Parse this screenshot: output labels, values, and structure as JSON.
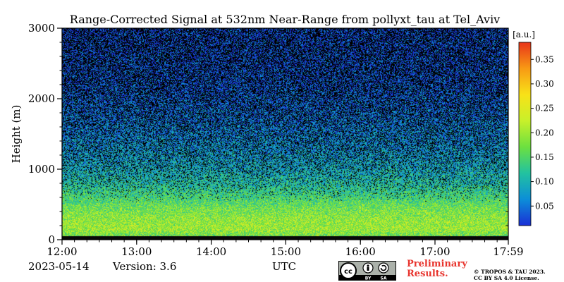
{
  "chart_data": {
    "type": "heatmap",
    "title": "Range-Corrected Signal at 532nm Near-Range from pollyxt_tau at Tel_Aviv",
    "ylabel": "Height (m)",
    "xlabel": "UTC",
    "x_tick_labels": [
      "12:00",
      "13:00",
      "14:00",
      "15:00",
      "16:00",
      "17:00",
      "17:59"
    ],
    "x_tick_hours": [
      12.0,
      13.0,
      14.0,
      15.0,
      16.0,
      17.0,
      17.983
    ],
    "xlim_hours": [
      12.0,
      17.983
    ],
    "y_tick_labels": [
      "0",
      "1000",
      "2000",
      "3000"
    ],
    "y_ticks": [
      0,
      1000,
      2000,
      3000
    ],
    "ylim": [
      0,
      3000
    ],
    "colorbar": {
      "unit_label": "[a.u.]",
      "tick_labels": [
        "0.05",
        "0.10",
        "0.15",
        "0.20",
        "0.25",
        "0.30",
        "0.35"
      ],
      "ticks": [
        0.05,
        0.1,
        0.15,
        0.2,
        0.25,
        0.3,
        0.35
      ],
      "range": [
        0.01,
        0.385
      ],
      "colors": [
        "#1a2fd6",
        "#0c8ed8",
        "#22c2a0",
        "#6ce040",
        "#c8f02a",
        "#f8e218",
        "#f89a14",
        "#e8341a"
      ]
    },
    "signal_profile": [
      {
        "height": 0,
        "value": 0.03
      },
      {
        "height": 50,
        "value": 0.17
      },
      {
        "height": 150,
        "value": 0.2
      },
      {
        "height": 300,
        "value": 0.19
      },
      {
        "height": 450,
        "value": 0.17
      },
      {
        "height": 600,
        "value": 0.14
      },
      {
        "height": 800,
        "value": 0.11
      },
      {
        "height": 1000,
        "value": 0.09
      },
      {
        "height": 1300,
        "value": 0.07
      },
      {
        "height": 1700,
        "value": 0.05
      },
      {
        "height": 2200,
        "value": 0.03
      },
      {
        "height": 3000,
        "value": 0.02
      }
    ]
  },
  "footer": {
    "date": "2023-05-14",
    "version": "Version: 3.6",
    "utc_label": "UTC",
    "preliminary_line1": "Preliminary",
    "preliminary_line2": "Results.",
    "copyright_line1": "© TROPOS & TAU 2023.",
    "copyright_line2": "CC BY SA 4.0 License.",
    "license_badge": {
      "cc": "cc",
      "by": "BY",
      "sa": "SA"
    }
  }
}
